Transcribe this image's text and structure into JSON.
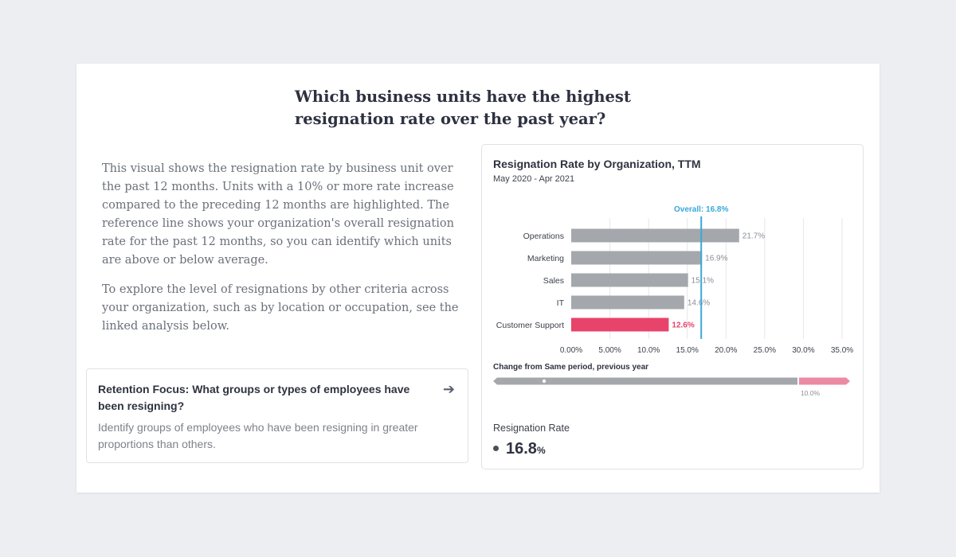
{
  "question": {
    "line1": "Which business units have the highest",
    "line2": "resignation rate over the past year?"
  },
  "description": {
    "paragraph1": "This visual shows the resignation rate by business unit over the past 12 months. Units with a 10% or more rate increase compared to the preceding 12 months are highlighted. The reference line shows your organization's overall resignation rate for the past 12 months, so you can identify which units are above or below average.",
    "paragraph2": "To explore the level of resignations by other criteria across your organization, such as by location or occupation, see the linked analysis below."
  },
  "focus_card": {
    "title": "Retention Focus: What groups or types of employees have been resigning?",
    "arrow": "➔",
    "description": "Identify groups of employees who have been resigning in greater proportions than others."
  },
  "colors": {
    "bar": "#a4a8ad",
    "highlight": "#e8436a",
    "reference": "#3aa8dc",
    "grid": "#e4e6ea",
    "change_gray": "#a4a8ad",
    "change_pink": "#ec8aa4"
  },
  "chart_data": {
    "type": "bar",
    "orientation": "horizontal",
    "title": "Resignation Rate by Organization, TTM",
    "subtitle": "May 2020 - Apr 2021",
    "categories": [
      "Operations",
      "Marketing",
      "Sales",
      "IT",
      "Customer Support"
    ],
    "values": [
      21.7,
      16.9,
      15.1,
      14.6,
      12.6
    ],
    "value_labels": [
      "21.7%",
      "16.9%",
      "15.1%",
      "14.6%",
      "12.6%"
    ],
    "highlighted": [
      false,
      false,
      false,
      false,
      true
    ],
    "xlim": [
      0,
      35
    ],
    "ticks": [
      0,
      5,
      10,
      15,
      20,
      25,
      30,
      35
    ],
    "tick_labels": [
      "0.00%",
      "5.00%",
      "10.0%",
      "15.0%",
      "20.0%",
      "25.0%",
      "30.0%",
      "35.0%"
    ],
    "grid": true,
    "reference_line": {
      "value": 16.8,
      "label": "Overall: 16.8%"
    },
    "change_scale": {
      "label": "Change from Same period, previous year",
      "threshold_label": "10.0%"
    }
  },
  "summary": {
    "label": "Resignation Rate",
    "value": "16.8",
    "unit": "%"
  }
}
